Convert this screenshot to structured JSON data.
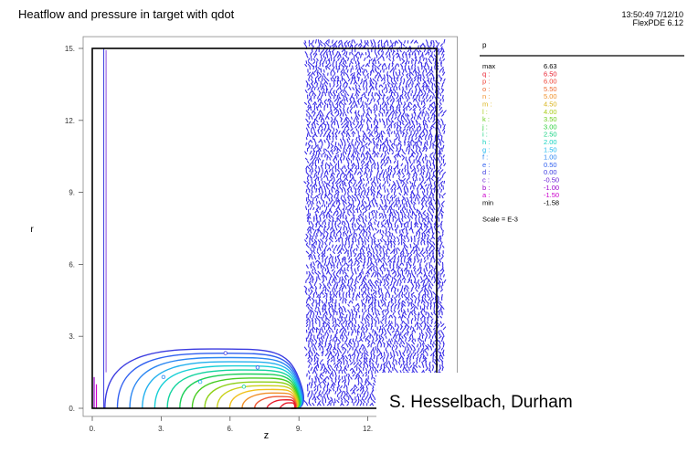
{
  "header": {
    "title": "Heatflow and pressure in target with qdot",
    "timestamp": "13:50:49 7/12/10",
    "software": "FlexPDE 6.12"
  },
  "credit": "S. Hesselbach, Durham",
  "colors": {
    "frame": "#000000",
    "vector_field": "#3a2ee6",
    "contour_palette": [
      "#cc00cc",
      "#9900cc",
      "#6a1fd6",
      "#3b3be0",
      "#2f5ff0",
      "#2a86f2",
      "#22b0ee",
      "#16cfd6",
      "#12d39e",
      "#1ccf58",
      "#47cc22",
      "#8fd11a",
      "#c9d11a",
      "#f0c11c",
      "#f0902a",
      "#ee5a36",
      "#e81c2c"
    ]
  },
  "chart_data": [
    {
      "type": "contour",
      "title": "Heatflow and pressure in target with qdot",
      "xlabel": "z",
      "ylabel": "r",
      "xlim": [
        0,
        15.5
      ],
      "ylim": [
        -0.3,
        15.3
      ],
      "grid": false,
      "xticks": [
        0,
        3,
        6,
        9,
        12,
        15
      ],
      "xtick_labels": [
        "0.",
        "3.",
        "6.",
        "9.",
        "12.",
        "15."
      ],
      "yticks": [
        0,
        3,
        6,
        9,
        12,
        15
      ],
      "ytick_labels": [
        "0.",
        "3.",
        "6.",
        "9.",
        "12.",
        "15."
      ],
      "domain": {
        "z": [
          0,
          15
        ],
        "r": [
          0,
          15
        ]
      },
      "vector_field_region": {
        "z": [
          9.3,
          15
        ],
        "r": [
          0,
          15.3
        ]
      },
      "thin_channel_z": [
        0.5,
        0.6
      ],
      "contour_peak": {
        "z": 8.7,
        "r": 0.1
      },
      "contour_max_extent": {
        "z": [
          0.55,
          9.0
        ],
        "r": [
          0,
          2.5
        ]
      },
      "legend": {
        "variable": "p",
        "position": "right",
        "entries": [
          {
            "label": "max",
            "value": "6.63",
            "color": "#000000"
          },
          {
            "label": "q :",
            "value": "6.50",
            "color": "#e81c2c"
          },
          {
            "label": "p :",
            "value": "6.00",
            "color": "#ee4336"
          },
          {
            "label": "o :",
            "value": "5.50",
            "color": "#ef6a30"
          },
          {
            "label": "n :",
            "value": "5.00",
            "color": "#f0902a"
          },
          {
            "label": "m :",
            "value": "4.50",
            "color": "#d9b41c"
          },
          {
            "label": "l :",
            "value": "4.00",
            "color": "#a9cc1a"
          },
          {
            "label": "k :",
            "value": "3.50",
            "color": "#6ccd1e"
          },
          {
            "label": "j :",
            "value": "3.00",
            "color": "#2fcf3e"
          },
          {
            "label": "i :",
            "value": "2.50",
            "color": "#14d282"
          },
          {
            "label": "h :",
            "value": "2.00",
            "color": "#14d2c0"
          },
          {
            "label": "g :",
            "value": "1.50",
            "color": "#1fb8ee"
          },
          {
            "label": "f :",
            "value": "1.00",
            "color": "#2a86f2"
          },
          {
            "label": "e :",
            "value": "0.50",
            "color": "#2f5ff0"
          },
          {
            "label": "d :",
            "value": "0.00",
            "color": "#3b3be0"
          },
          {
            "label": "c :",
            "value": "-0.50",
            "color": "#6a1fd6"
          },
          {
            "label": "b :",
            "value": "-1.00",
            "color": "#9900cc"
          },
          {
            "label": "a :",
            "value": "-1.50",
            "color": "#cc00cc"
          },
          {
            "label": "min",
            "value": "-1.58",
            "color": "#000000"
          }
        ],
        "scale": "Scale = E-3"
      }
    }
  ]
}
